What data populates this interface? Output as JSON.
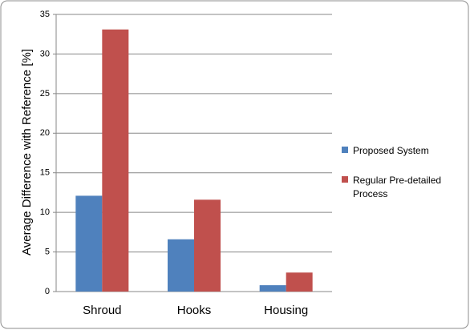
{
  "chart_data": {
    "type": "bar",
    "y_label": "Average Difference with Reference [%]",
    "categories": [
      "Shroud",
      "Hooks",
      "Housing"
    ],
    "series": [
      {
        "name": "Proposed System",
        "color": "#4f81bd",
        "values": [
          12.1,
          6.6,
          0.8
        ]
      },
      {
        "name": "Regular Pre-detailed Process",
        "color": "#c0504d",
        "values": [
          33.1,
          11.6,
          2.4
        ]
      }
    ],
    "ylim": [
      0,
      35
    ],
    "yticks": [
      0,
      5,
      10,
      15,
      20,
      25,
      30,
      35
    ],
    "grid": true,
    "legend": "right"
  }
}
